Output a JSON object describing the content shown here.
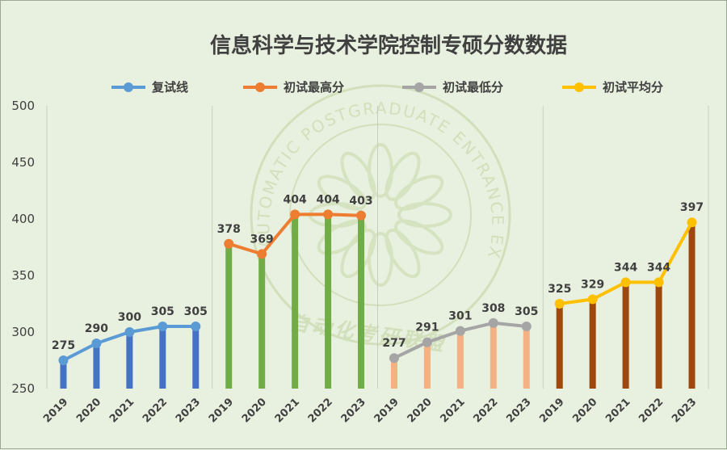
{
  "chart_data": {
    "type": "bar+line",
    "title": "信息科学与技术学院控制专硕分数数据",
    "ylim": [
      250,
      500
    ],
    "yticks": [
      250,
      300,
      350,
      400,
      450,
      500
    ],
    "legend_position": "top",
    "grid": "vertical panel separators only",
    "watermark_text": [
      "AUTOMATIC POSTGRADUATE ENTRANCE EXAMINATION ALLIANCE",
      "自动化考研联盟"
    ],
    "panels": [
      {
        "name": "复试线",
        "line_color": "#5b9bd5",
        "bar_color": "#4472c4",
        "categories": [
          "2019",
          "2020",
          "2021",
          "2022",
          "2023"
        ],
        "values": [
          275,
          290,
          300,
          305,
          305
        ]
      },
      {
        "name": "初试最高分",
        "line_color": "#ed7d31",
        "bar_color": "#70ad47",
        "categories": [
          "2019",
          "2020",
          "2021",
          "2022",
          "2023"
        ],
        "values": [
          378,
          369,
          404,
          404,
          403
        ]
      },
      {
        "name": "初试最低分",
        "line_color": "#a5a5a5",
        "bar_color": "#f4b183",
        "categories": [
          "2019",
          "2020",
          "2021",
          "2022",
          "2023"
        ],
        "values": [
          277,
          291,
          301,
          308,
          305
        ]
      },
      {
        "name": "初试平均分",
        "line_color": "#ffc000",
        "bar_color": "#9e480e",
        "categories": [
          "2019",
          "2020",
          "2021",
          "2022",
          "2023"
        ],
        "values": [
          325,
          329,
          344,
          344,
          397
        ]
      }
    ]
  }
}
